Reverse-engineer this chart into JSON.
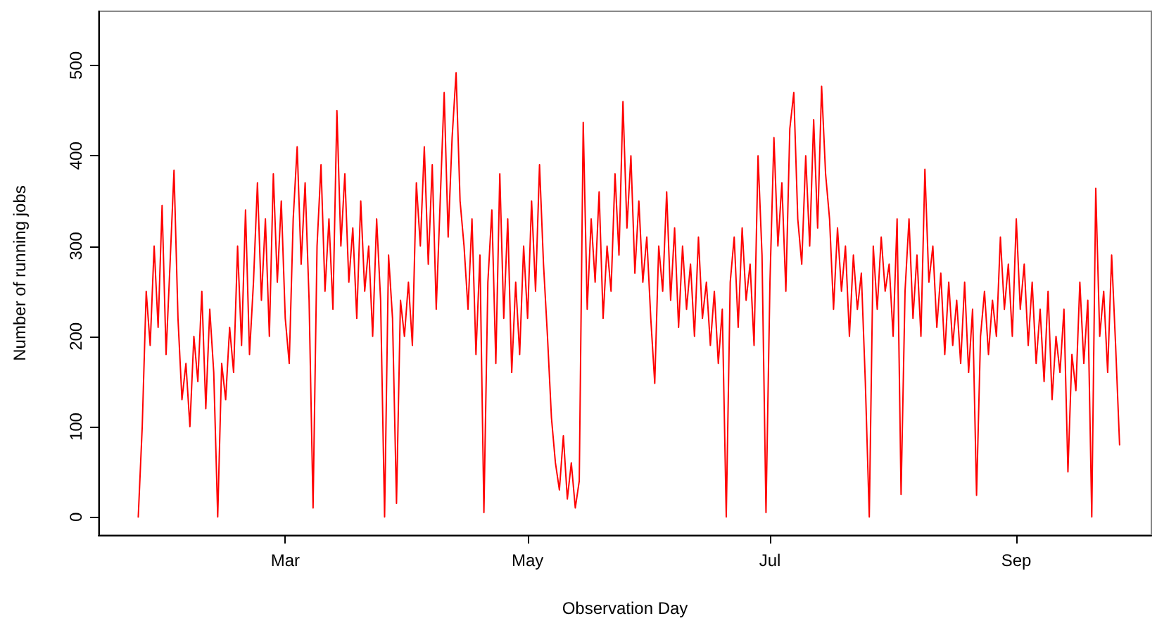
{
  "chart_data": {
    "type": "line",
    "xlabel": "Observation Day",
    "ylabel": "Number of running jobs",
    "xlim": [
      "--01-13",
      "--10-05"
    ],
    "xticks": [
      {
        "value": "--03-01",
        "label": "Mar"
      },
      {
        "value": "--05-01",
        "label": "May"
      },
      {
        "value": "--07-01",
        "label": "Jul"
      },
      {
        "value": "--09-01",
        "label": "Sep"
      }
    ],
    "ylim": [
      -20,
      560
    ],
    "yticks": [
      0,
      100,
      200,
      300,
      400,
      500
    ],
    "grid": false,
    "line_style": "solid",
    "x": [
      "--01-23",
      "--01-24",
      "--01-25",
      "--01-26",
      "--01-27",
      "--01-28",
      "--01-29",
      "--01-30",
      "--01-31",
      "--02-01",
      "--02-02",
      "--02-03",
      "--02-04",
      "--02-05",
      "--02-06",
      "--02-07",
      "--02-08",
      "--02-09",
      "--02-10",
      "--02-11",
      "--02-12",
      "--02-13",
      "--02-14",
      "--02-15",
      "--02-16",
      "--02-17",
      "--02-18",
      "--02-19",
      "--02-20",
      "--02-21",
      "--02-22",
      "--02-23",
      "--02-24",
      "--02-25",
      "--02-26",
      "--02-27",
      "--02-28",
      "--03-01",
      "--03-02",
      "--03-03",
      "--03-04",
      "--03-05",
      "--03-06",
      "--03-07",
      "--03-08",
      "--03-09",
      "--03-10",
      "--03-11",
      "--03-12",
      "--03-13",
      "--03-14",
      "--03-15",
      "--03-16",
      "--03-17",
      "--03-18",
      "--03-19",
      "--03-20",
      "--03-21",
      "--03-22",
      "--03-23",
      "--03-24",
      "--03-25",
      "--03-26",
      "--03-27",
      "--03-28",
      "--03-29",
      "--03-30",
      "--03-31",
      "--04-01",
      "--04-02",
      "--04-03",
      "--04-04",
      "--04-05",
      "--04-06",
      "--04-07",
      "--04-08",
      "--04-09",
      "--04-10",
      "--04-11",
      "--04-12",
      "--04-13",
      "--04-14",
      "--04-15",
      "--04-16",
      "--04-17",
      "--04-18",
      "--04-19",
      "--04-20",
      "--04-21",
      "--04-22",
      "--04-23",
      "--04-24",
      "--04-25",
      "--04-26",
      "--04-27",
      "--04-28",
      "--04-29",
      "--04-30",
      "--05-01",
      "--05-02",
      "--05-03",
      "--05-04",
      "--05-05",
      "--05-06",
      "--05-07",
      "--05-08",
      "--05-09",
      "--05-10",
      "--05-11",
      "--05-12",
      "--05-13",
      "--05-14",
      "--05-15",
      "--05-16",
      "--05-17",
      "--05-18",
      "--05-19",
      "--05-20",
      "--05-21",
      "--05-22",
      "--05-23",
      "--05-24",
      "--05-25",
      "--05-26",
      "--05-27",
      "--05-28",
      "--05-29",
      "--05-30",
      "--05-31",
      "--06-01",
      "--06-02",
      "--06-03",
      "--06-04",
      "--06-05",
      "--06-06",
      "--06-07",
      "--06-08",
      "--06-09",
      "--06-10",
      "--06-11",
      "--06-12",
      "--06-13",
      "--06-14",
      "--06-15",
      "--06-16",
      "--06-17",
      "--06-18",
      "--06-19",
      "--06-20",
      "--06-21",
      "--06-22",
      "--06-23",
      "--06-24",
      "--06-25",
      "--06-26",
      "--06-27",
      "--06-28",
      "--06-29",
      "--06-30",
      "--07-01",
      "--07-02",
      "--07-03",
      "--07-04",
      "--07-05",
      "--07-06",
      "--07-07",
      "--07-08",
      "--07-09",
      "--07-10",
      "--07-11",
      "--07-12",
      "--07-13",
      "--07-14",
      "--07-15",
      "--07-16",
      "--07-17",
      "--07-18",
      "--07-19",
      "--07-20",
      "--07-21",
      "--07-22",
      "--07-23",
      "--07-24",
      "--07-25",
      "--07-26",
      "--07-27",
      "--07-28",
      "--07-29",
      "--07-30",
      "--07-31",
      "--08-01",
      "--08-02",
      "--08-03",
      "--08-04",
      "--08-05",
      "--08-06",
      "--08-07",
      "--08-08",
      "--08-09",
      "--08-10",
      "--08-11",
      "--08-12",
      "--08-13",
      "--08-14",
      "--08-15",
      "--08-16",
      "--08-17",
      "--08-18",
      "--08-19",
      "--08-20",
      "--08-21",
      "--08-22",
      "--08-23",
      "--08-24",
      "--08-25",
      "--08-26",
      "--08-27",
      "--08-28",
      "--08-29",
      "--08-30",
      "--08-31",
      "--09-01",
      "--09-02",
      "--09-03",
      "--09-04",
      "--09-05",
      "--09-06",
      "--09-07",
      "--09-08",
      "--09-09",
      "--09-10",
      "--09-11",
      "--09-12",
      "--09-13",
      "--09-14",
      "--09-15",
      "--09-16",
      "--09-17",
      "--09-18",
      "--09-19",
      "--09-20",
      "--09-21",
      "--09-22",
      "--09-23",
      "--09-24",
      "--09-25",
      "--09-26",
      "--09-27"
    ],
    "series": [
      {
        "color": "#ff0000",
        "values": [
          0,
          100,
          250,
          190,
          300,
          210,
          345,
          180,
          280,
          384,
          220,
          130,
          170,
          100,
          200,
          150,
          250,
          120,
          230,
          160,
          0,
          170,
          130,
          210,
          160,
          300,
          190,
          340,
          180,
          260,
          370,
          240,
          330,
          200,
          380,
          260,
          350,
          220,
          170,
          330,
          410,
          280,
          370,
          240,
          10,
          300,
          390,
          250,
          330,
          230,
          450,
          300,
          380,
          260,
          320,
          220,
          350,
          250,
          300,
          200,
          330,
          240,
          0,
          290,
          220,
          15,
          240,
          200,
          260,
          190,
          370,
          300,
          410,
          280,
          390,
          230,
          350,
          470,
          310,
          420,
          492,
          350,
          300,
          230,
          330,
          180,
          290,
          5,
          260,
          340,
          170,
          380,
          220,
          330,
          160,
          260,
          180,
          300,
          220,
          350,
          250,
          390,
          280,
          200,
          110,
          60,
          30,
          90,
          20,
          60,
          10,
          40,
          437,
          230,
          330,
          260,
          360,
          220,
          300,
          250,
          380,
          290,
          460,
          320,
          400,
          270,
          350,
          260,
          310,
          220,
          148,
          300,
          250,
          360,
          240,
          320,
          210,
          300,
          230,
          280,
          200,
          310,
          220,
          260,
          190,
          250,
          170,
          230,
          0,
          260,
          310,
          210,
          320,
          240,
          280,
          190,
          400,
          290,
          5,
          260,
          420,
          300,
          370,
          250,
          430,
          470,
          330,
          280,
          400,
          300,
          440,
          320,
          477,
          380,
          330,
          230,
          320,
          250,
          300,
          200,
          290,
          230,
          270,
          150,
          0,
          300,
          230,
          310,
          250,
          280,
          200,
          330,
          25,
          250,
          330,
          220,
          290,
          200,
          385,
          260,
          300,
          210,
          270,
          180,
          260,
          190,
          240,
          170,
          260,
          160,
          230,
          24,
          200,
          250,
          180,
          240,
          200,
          310,
          230,
          280,
          200,
          330,
          230,
          280,
          190,
          260,
          170,
          230,
          150,
          250,
          130,
          200,
          160,
          230,
          50,
          180,
          140,
          260,
          170,
          240,
          0,
          364,
          200,
          250,
          160,
          290,
          190,
          80
        ]
      }
    ]
  }
}
